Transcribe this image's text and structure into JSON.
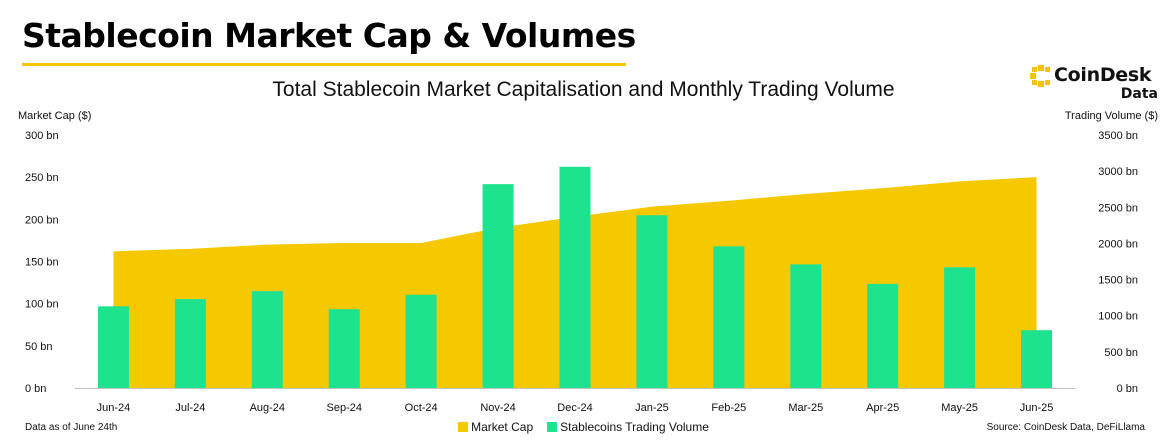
{
  "header": {
    "title": "Stablecoin Market Cap & Volumes"
  },
  "brand": {
    "name": "CoinDesk",
    "sub": "Data",
    "color": "#f5c400"
  },
  "footer": {
    "note": "Data as of June 24th",
    "source": "Source: CoinDesk Data, DeFiLlama"
  },
  "chart_data": {
    "type": "bar",
    "title": "Total Stablecoin Market Capitalisation and Monthly Trading Volume",
    "categories": [
      "Jun-24",
      "Jul-24",
      "Aug-24",
      "Sep-24",
      "Oct-24",
      "Nov-24",
      "Dec-24",
      "Jan-25",
      "Feb-25",
      "Mar-25",
      "Apr-25",
      "May-25",
      "Jun-25"
    ],
    "y_left": {
      "label": "Market Cap ($)",
      "min": 0,
      "max": 300,
      "ticks": [
        "0 bn",
        "50 bn",
        "100 bn",
        "150 bn",
        "200 bn",
        "250 bn",
        "300 bn"
      ]
    },
    "y_right": {
      "label": "Trading Volume ($)",
      "min": 0,
      "max": 3500,
      "ticks": [
        "0 bn",
        "500 bn",
        "1000 bn",
        "1500 bn",
        "2000 bn",
        "2500 bn",
        "3000 bn",
        "3500 bn"
      ]
    },
    "series": [
      {
        "name": "Market Cap",
        "type": "area",
        "axis": "left",
        "color": "#f5c800",
        "values": [
          162,
          165,
          170,
          172,
          172,
          190,
          203,
          215,
          222,
          230,
          237,
          245,
          250
        ]
      },
      {
        "name": "Stablecoins Trading Volume",
        "type": "bar",
        "axis": "right",
        "color": "#1de38f",
        "values": [
          1130,
          1230,
          1340,
          1090,
          1290,
          2820,
          3060,
          2390,
          1960,
          1710,
          1440,
          1670,
          800
        ]
      }
    ],
    "grid": false,
    "legend": "bottom"
  }
}
